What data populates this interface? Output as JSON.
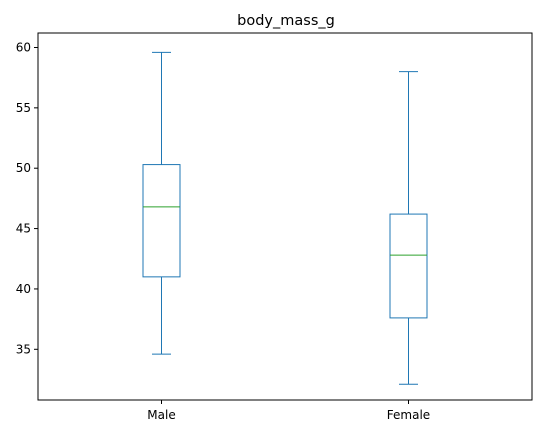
{
  "chart_data": {
    "type": "boxplot",
    "title": "body_mass_g",
    "xlabel": "",
    "ylabel": "",
    "ylim": [
      30.8,
      61.2
    ],
    "yticks": [
      35,
      40,
      45,
      50,
      55,
      60
    ],
    "grid": false,
    "legend": "none",
    "categories": [
      "Male",
      "Female"
    ],
    "boxes": [
      {
        "category": "Male",
        "whisker_low": 34.6,
        "q1": 41.0,
        "median": 46.8,
        "q3": 50.3,
        "whisker_high": 59.6
      },
      {
        "category": "Female",
        "whisker_low": 32.1,
        "q1": 37.6,
        "median": 42.8,
        "q3": 46.2,
        "whisker_high": 58.0
      }
    ],
    "colors": {
      "box": "#1f77b4",
      "median": "#2ca02c",
      "axis": "#000000"
    }
  }
}
